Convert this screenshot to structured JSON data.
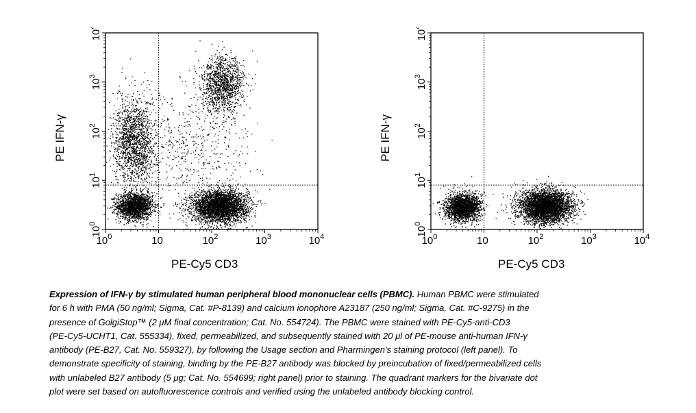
{
  "chart_data": [
    {
      "type": "scatter",
      "panel": "left",
      "xlabel": "PE-Cy5 CD3",
      "ylabel": "PE IFN-γ",
      "x_scale": "log",
      "y_scale": "log",
      "xlim": [
        1,
        10000
      ],
      "ylim": [
        1,
        10000
      ],
      "x_ticks": [
        {
          "base": "10",
          "exp": "0"
        },
        {
          "base": "10",
          "exp": ""
        },
        {
          "base": "10",
          "exp": "2"
        },
        {
          "base": "10",
          "exp": "3"
        },
        {
          "base": "10",
          "exp": "4"
        }
      ],
      "y_ticks": [
        {
          "base": "10",
          "exp": "0"
        },
        {
          "base": "10",
          "exp": "1"
        },
        {
          "base": "10",
          "exp": "2"
        },
        {
          "base": "10",
          "exp": "3"
        },
        {
          "base": "10",
          "exp": "4"
        }
      ],
      "quadrant_x": 10,
      "quadrant_y": 8,
      "grid": false,
      "populations": [
        {
          "x_center": 3.5,
          "y_center": 3.0,
          "n": 2000,
          "spread_x": 0.17,
          "spread_y": 0.14
        },
        {
          "x_center": 140,
          "y_center": 3.0,
          "n": 3800,
          "spread_x": 0.26,
          "spread_y": 0.16
        },
        {
          "x_center": 3.5,
          "y_center": 60,
          "n": 1700,
          "spread_x": 0.2,
          "spread_y": 0.45
        },
        {
          "x_center": 160,
          "y_center": 900,
          "n": 1300,
          "spread_x": 0.2,
          "spread_y": 0.28
        },
        {
          "x_center": 50,
          "y_center": 50,
          "n": 500,
          "spread_x": 0.5,
          "spread_y": 0.6
        }
      ]
    },
    {
      "type": "scatter",
      "panel": "right",
      "xlabel": "PE-Cy5 CD3",
      "ylabel": "PE IFN-γ",
      "x_scale": "log",
      "y_scale": "log",
      "xlim": [
        1,
        10000
      ],
      "ylim": [
        1,
        10000
      ],
      "x_ticks": [
        {
          "base": "10",
          "exp": "0"
        },
        {
          "base": "10",
          "exp": ""
        },
        {
          "base": "10",
          "exp": "2"
        },
        {
          "base": "10",
          "exp": "3"
        },
        {
          "base": "10",
          "exp": "4"
        }
      ],
      "y_ticks": [
        {
          "base": "10",
          "exp": "0"
        },
        {
          "base": "10",
          "exp": "1"
        },
        {
          "base": "10",
          "exp": "2"
        },
        {
          "base": "10",
          "exp": "3"
        },
        {
          "base": "10",
          "exp": "4"
        }
      ],
      "quadrant_x": 10,
      "quadrant_y": 8,
      "grid": false,
      "populations": [
        {
          "x_center": 4,
          "y_center": 2.9,
          "n": 2300,
          "spread_x": 0.17,
          "spread_y": 0.14
        },
        {
          "x_center": 140,
          "y_center": 3.0,
          "n": 4000,
          "spread_x": 0.25,
          "spread_y": 0.17
        }
      ]
    }
  ],
  "caption": {
    "title": "Expression of IFN-γ by stimulated human peripheral blood mononuclear cells (PBMC).",
    "lines": [
      " Human PBMC were stimulated",
      "for 6 h with PMA (50 ng/ml; Sigma, Cat. #P-8139) and calcium ionophore A23187 (250 ng/ml; Sigma, Cat. #C-9275) in the",
      "presence of GolgiStop™ (2 μM final concentration; Cat. No. 554724). The PBMC were stained with PE-Cy5-anti-CD3",
      "(PE-Cy5-UCHT1, Cat. 555334), fixed, permeabilized, and subsequently stained with 20 μl of PE-mouse anti-human IFN-γ",
      "antibody (PE-B27, Cat. No. 559327), by following the Usage section and Pharmingen's staining protocol (left panel). To",
      "demonstrate specificity of staining, binding by the PE-B27 antibody was blocked by preincubation of fixed/permeabilized cells",
      "with unlabeled B27 antibody (5 μg; Cat. No. 554699; right panel) prior to staining. The quadrant markers for the bivariate dot",
      "plot were set based on autofluorescence controls and verified using the unlabeled antibody blocking control."
    ]
  }
}
